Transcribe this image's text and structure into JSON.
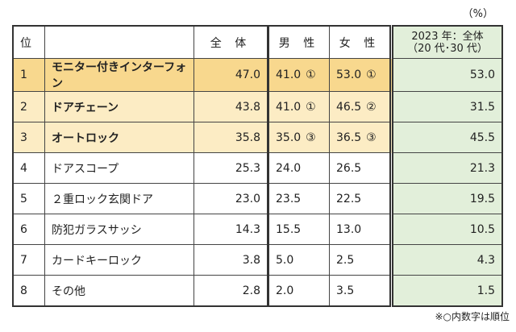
{
  "unit": "（%）",
  "headers": {
    "rank": "位",
    "item": "",
    "total": "全 体",
    "male": "男 性",
    "female": "女 性",
    "prev_line1": "2023 年：全体",
    "prev_line2": "（20 代･30 代）"
  },
  "rows": [
    {
      "rank": "1",
      "item": "モニター付きインターフォン",
      "total": "47.0",
      "male": "41.0",
      "male_rank": "①",
      "female": "53.0",
      "female_rank": "①",
      "prev": "53.0"
    },
    {
      "rank": "2",
      "item": "ドアチェーン",
      "total": "43.8",
      "male": "41.0",
      "male_rank": "①",
      "female": "46.5",
      "female_rank": "②",
      "prev": "31.5"
    },
    {
      "rank": "3",
      "item": "オートロック",
      "total": "35.8",
      "male": "35.0",
      "male_rank": "③",
      "female": "36.5",
      "female_rank": "③",
      "prev": "45.5"
    },
    {
      "rank": "4",
      "item": "ドアスコープ",
      "total": "25.3",
      "male": "24.0",
      "male_rank": "",
      "female": "26.5",
      "female_rank": "",
      "prev": "21.3"
    },
    {
      "rank": "5",
      "item": "２重ロック玄関ドア",
      "total": "23.0",
      "male": "23.5",
      "male_rank": "",
      "female": "22.5",
      "female_rank": "",
      "prev": "19.5"
    },
    {
      "rank": "6",
      "item": "防犯ガラスサッシ",
      "total": "14.3",
      "male": "15.5",
      "male_rank": "",
      "female": "13.0",
      "female_rank": "",
      "prev": "10.5"
    },
    {
      "rank": "7",
      "item": "カードキーロック",
      "total": "3.8",
      "male": "5.0",
      "male_rank": "",
      "female": "2.5",
      "female_rank": "",
      "prev": "4.3"
    },
    {
      "rank": "8",
      "item": "その他",
      "total": "2.8",
      "male": "2.0",
      "male_rank": "",
      "female": "3.5",
      "female_rank": "",
      "prev": "1.5"
    }
  ],
  "note": "※○内数字は順位",
  "colors": {
    "rank1": "#f8d88e",
    "rank2_3": "#fcecc4",
    "prev_column": "#e2efda"
  }
}
